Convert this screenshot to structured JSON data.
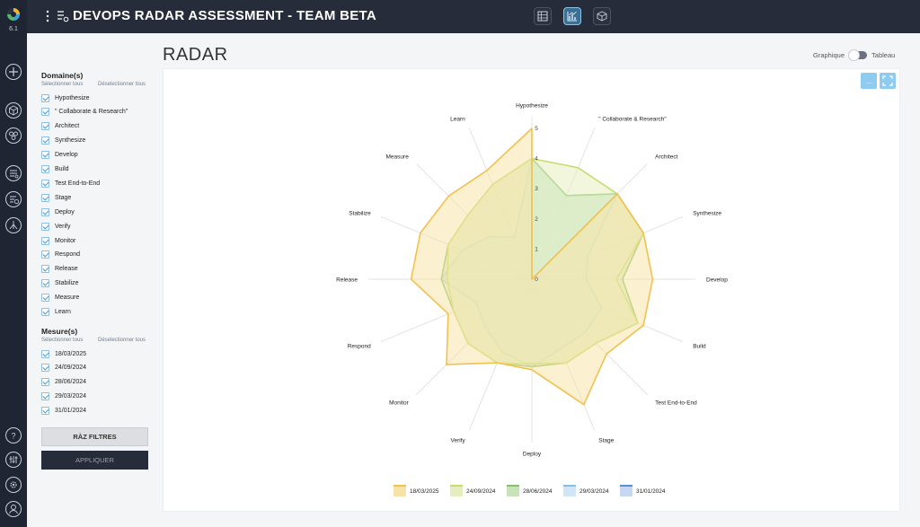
{
  "app": {
    "version": "6.1",
    "title": "DEVOPS RADAR ASSESSMENT - TEAM BETA"
  },
  "rail": {
    "icons": [
      "logo-icon",
      "add-icon",
      "cube-icon",
      "group-icon",
      "checklist-icon",
      "checklist-clock-icon",
      "hierarchy-icon",
      "help-icon",
      "tools-icon",
      "settings-icon",
      "user-icon"
    ]
  },
  "header": {
    "views": [
      "table-view-icon",
      "chart-view-icon",
      "cube-view-icon"
    ],
    "active_view": "chart-view-icon"
  },
  "filters": {
    "domains_title": "Domaine(s)",
    "select_all": "Sélectionner tous",
    "deselect_all": "Déselectionner tous",
    "domains": [
      "Hypothesize",
      "\" Collaborate & Research\"",
      "Architect",
      "Synthesize",
      "Develop",
      "Build",
      "Test End-to-End",
      "Stage",
      "Deploy",
      "Verify",
      "Monitor",
      "Respond",
      "Release",
      "Stabilize",
      "Measure",
      "Learn"
    ],
    "measures_title": "Mesure(s)",
    "measures": [
      "18/03/2025",
      "24/09/2024",
      "28/06/2024",
      "29/03/2024",
      "31/01/2024"
    ],
    "reset_label": "RÀZ FILTRES",
    "apply_label": "APPLIQUER"
  },
  "main": {
    "title": "RADAR",
    "toggle_left": "Graphique",
    "toggle_right": "Tableau",
    "toggle_state": "Graphique",
    "menu_button": "..."
  },
  "chart_data": {
    "type": "radar",
    "axes": [
      "Hypothesize",
      "\" Collaborate & Research\"",
      "Architect",
      "Synthesize",
      "Develop",
      "Build",
      "Test End-to-End",
      "Stage",
      "Deploy",
      "Verify",
      "Monitor",
      "Respond",
      "Release",
      "Stabilize",
      "Measure",
      "Learn"
    ],
    "rmax": 5,
    "ticks": [
      "0",
      "1",
      "2",
      "3",
      "4",
      "5"
    ],
    "legend_position": "bottom",
    "series": [
      {
        "name": "18/03/2025",
        "color": "#f2c14e",
        "fill": "#f7e3a8",
        "values": [
          5,
          0,
          4,
          4,
          4,
          4,
          3.5,
          4.5,
          3,
          3,
          4,
          3,
          4,
          4,
          3.9,
          3.9
        ]
      },
      {
        "name": "24/09/2024",
        "color": "#c8dc6e",
        "fill": "#e6eec0",
        "values": [
          4,
          4,
          4,
          4,
          2.8,
          3.8,
          3,
          3,
          2.8,
          3,
          3,
          2.8,
          2.8,
          3,
          3,
          3.4
        ]
      },
      {
        "name": "28/06/2024",
        "color": "#86c06a",
        "fill": "#c9e3b8",
        "values": [
          4,
          3,
          4,
          4,
          3,
          3.8,
          3,
          3,
          2.9,
          3,
          3,
          2.8,
          3,
          3,
          3,
          3.4
        ]
      },
      {
        "name": "29/03/2024",
        "color": "#80bfe0",
        "fill": "#cfe7f4",
        "values": [
          4,
          3,
          4,
          2,
          1.8,
          2.5,
          2.5,
          2.5,
          2.9,
          2.6,
          2.2,
          2,
          3,
          2.5,
          2,
          1.5
        ]
      },
      {
        "name": "31/01/2024",
        "color": "#5b8fd4",
        "fill": "#c6d8f1",
        "values": [
          4,
          0,
          4,
          0,
          0,
          0,
          0,
          0,
          0,
          0,
          0,
          0,
          0,
          0,
          0,
          0
        ]
      }
    ]
  }
}
